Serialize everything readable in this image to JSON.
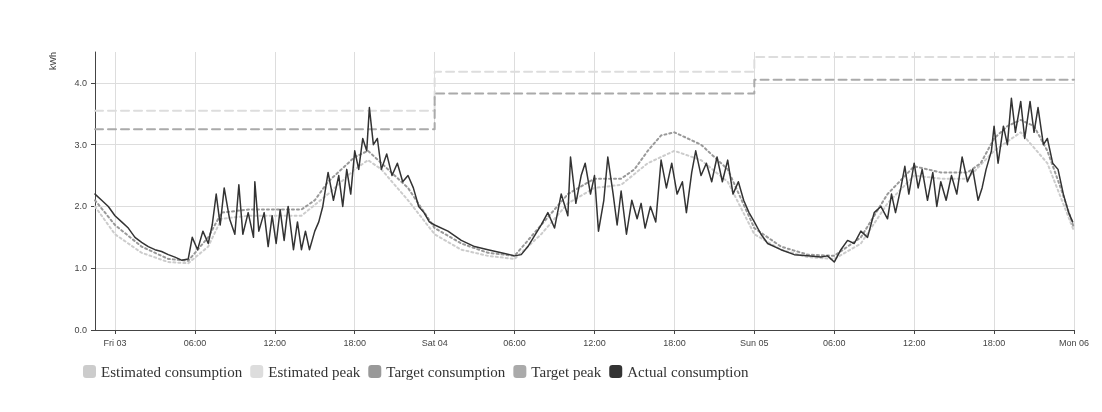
{
  "chart_data": {
    "type": "line",
    "ylabel": "kWh",
    "xlim": [
      "--03-02T22:30",
      "--03-06T00:00"
    ],
    "ylim": [
      0,
      4.5
    ],
    "xticks": [
      {
        "value": "--03-03T00:00",
        "label": "Fri 03"
      },
      {
        "value": "--03-03T06:00",
        "label": "06:00"
      },
      {
        "value": "--03-03T12:00",
        "label": "12:00"
      },
      {
        "value": "--03-03T18:00",
        "label": "18:00"
      },
      {
        "value": "--03-04T00:00",
        "label": "Sat 04"
      },
      {
        "value": "--03-04T06:00",
        "label": "06:00"
      },
      {
        "value": "--03-04T12:00",
        "label": "12:00"
      },
      {
        "value": "--03-04T18:00",
        "label": "18:00"
      },
      {
        "value": "--03-05T00:00",
        "label": "Sun 05"
      },
      {
        "value": "--03-05T06:00",
        "label": "06:00"
      },
      {
        "value": "--03-05T12:00",
        "label": "12:00"
      },
      {
        "value": "--03-05T18:00",
        "label": "18:00"
      },
      {
        "value": "--03-06T00:00",
        "label": "Mon 06"
      }
    ],
    "yticks": [
      {
        "value": 0,
        "label": "0.0"
      },
      {
        "value": 1,
        "label": "1.0"
      },
      {
        "value": 2,
        "label": "2.0"
      },
      {
        "value": 3,
        "label": "3.0"
      },
      {
        "value": 4,
        "label": "4.0"
      }
    ],
    "grid": true,
    "legend": "bottom left",
    "marker": "none",
    "series": [
      {
        "name": "Estimated consumption",
        "line_style": "dotted",
        "color": "#cccccc",
        "x": [
          "--03-02T22:30",
          "--03-03T00:00",
          "--03-03T02:00",
          "--03-03T04:00",
          "--03-03T05:30",
          "--03-03T07:00",
          "--03-03T08:00",
          "--03-03T10:00",
          "--03-03T12:00",
          "--03-03T14:00",
          "--03-03T16:00",
          "--03-03T18:00",
          "--03-03T19:00",
          "--03-03T20:00",
          "--03-03T22:00",
          "--03-04T00:00",
          "--03-04T02:00",
          "--03-04T04:00",
          "--03-04T06:00",
          "--03-04T08:00",
          "--03-04T10:00",
          "--03-04T12:00",
          "--03-04T14:00",
          "--03-04T16:00",
          "--03-04T18:00",
          "--03-04T20:00",
          "--03-04T22:00",
          "--03-05T00:00",
          "--03-05T02:00",
          "--03-05T04:00",
          "--03-05T06:00",
          "--03-05T08:00",
          "--03-05T10:00",
          "--03-05T12:00",
          "--03-05T14:00",
          "--03-05T16:00",
          "--03-05T18:00",
          "--03-05T20:00",
          "--03-05T22:00",
          "--03-06T00:00"
        ],
        "values": [
          2.0,
          1.55,
          1.25,
          1.1,
          1.08,
          1.35,
          1.8,
          1.85,
          1.85,
          1.85,
          2.2,
          2.6,
          2.75,
          2.6,
          2.1,
          1.55,
          1.3,
          1.2,
          1.15,
          1.55,
          2.05,
          2.3,
          2.35,
          2.7,
          2.9,
          2.75,
          2.4,
          1.55,
          1.3,
          1.18,
          1.15,
          1.4,
          2.05,
          2.5,
          2.45,
          2.45,
          2.9,
          3.2,
          2.7,
          1.6
        ]
      },
      {
        "name": "Estimated peak",
        "type": "step",
        "line_style": "dashed",
        "color": "#dddddd",
        "x": [
          "--03-02T22:30",
          "--03-04T00:00",
          "--03-05T00:00",
          "--03-06T00:00"
        ],
        "values": [
          3.55,
          4.18,
          4.42,
          4.42
        ]
      },
      {
        "name": "Target consumption",
        "line_style": "dotted",
        "color": "#999999",
        "x": [
          "--03-02T22:30",
          "--03-03T00:00",
          "--03-03T02:00",
          "--03-03T04:00",
          "--03-03T05:30",
          "--03-03T07:00",
          "--03-03T08:00",
          "--03-03T10:00",
          "--03-03T12:00",
          "--03-03T14:00",
          "--03-03T15:00",
          "--03-03T16:00",
          "--03-03T17:00",
          "--03-03T18:00",
          "--03-03T19:00",
          "--03-03T20:00",
          "--03-03T22:00",
          "--03-04T00:00",
          "--03-04T02:00",
          "--03-04T04:00",
          "--03-04T06:00",
          "--03-04T08:00",
          "--03-04T10:00",
          "--03-04T12:00",
          "--03-04T14:00",
          "--03-04T15:00",
          "--03-04T16:00",
          "--03-04T17:00",
          "--03-04T18:00",
          "--03-04T19:00",
          "--03-04T20:00",
          "--03-04T22:00",
          "--03-05T00:00",
          "--03-05T02:00",
          "--03-05T04:00",
          "--03-05T06:00",
          "--03-05T08:00",
          "--03-05T10:00",
          "--03-05T12:00",
          "--03-05T14:00",
          "--03-05T16:00",
          "--03-05T17:00",
          "--03-05T18:00",
          "--03-05T19:00",
          "--03-05T20:00",
          "--03-05T21:00",
          "--03-05T22:00",
          "--03-05T23:00",
          "--03-06T00:00"
        ],
        "values": [
          2.1,
          1.7,
          1.35,
          1.15,
          1.12,
          1.5,
          1.9,
          1.95,
          1.95,
          1.95,
          2.1,
          2.4,
          2.6,
          2.8,
          2.9,
          2.7,
          2.3,
          1.65,
          1.4,
          1.25,
          1.2,
          1.7,
          2.2,
          2.45,
          2.45,
          2.6,
          2.9,
          3.15,
          3.2,
          3.1,
          3.0,
          2.6,
          1.65,
          1.35,
          1.22,
          1.2,
          1.5,
          2.2,
          2.65,
          2.55,
          2.55,
          2.7,
          3.1,
          3.3,
          3.4,
          3.3,
          2.9,
          2.3,
          1.65
        ]
      },
      {
        "name": "Target peak",
        "type": "step",
        "line_style": "dashed",
        "color": "#aaaaaa",
        "x": [
          "--03-02T22:30",
          "--03-04T00:00",
          "--03-05T00:00",
          "--03-06T00:00"
        ],
        "values": [
          3.25,
          3.83,
          4.05,
          4.05
        ]
      },
      {
        "name": "Actual consumption",
        "line_style": "solid",
        "color": "#333333",
        "x": [
          "--03-02T22:30",
          "--03-02T23:00",
          "--03-02T23:30",
          "--03-03T00:00",
          "--03-03T00:30",
          "--03-03T01:00",
          "--03-03T01:30",
          "--03-03T02:00",
          "--03-03T02:30",
          "--03-03T03:00",
          "--03-03T03:30",
          "--03-03T04:00",
          "--03-03T04:30",
          "--03-03T05:00",
          "--03-03T05:30",
          "--03-03T05:48",
          "--03-03T06:12",
          "--03-03T06:36",
          "--03-03T07:00",
          "--03-03T07:18",
          "--03-03T07:36",
          "--03-03T07:54",
          "--03-03T08:12",
          "--03-03T08:36",
          "--03-03T09:00",
          "--03-03T09:18",
          "--03-03T09:36",
          "--03-03T10:00",
          "--03-03T10:24",
          "--03-03T10:30",
          "--03-03T10:48",
          "--03-03T11:12",
          "--03-03T11:30",
          "--03-03T11:48",
          "--03-03T12:06",
          "--03-03T12:24",
          "--03-03T12:42",
          "--03-03T13:00",
          "--03-03T13:24",
          "--03-03T13:42",
          "--03-03T14:00",
          "--03-03T14:18",
          "--03-03T14:36",
          "--03-03T15:00",
          "--03-03T15:18",
          "--03-03T15:36",
          "--03-03T16:00",
          "--03-03T16:24",
          "--03-03T16:48",
          "--03-03T17:06",
          "--03-03T17:24",
          "--03-03T17:42",
          "--03-03T18:00",
          "--03-03T18:18",
          "--03-03T18:36",
          "--03-03T18:54",
          "--03-03T19:06",
          "--03-03T19:24",
          "--03-03T19:42",
          "--03-03T20:00",
          "--03-03T20:24",
          "--03-03T20:48",
          "--03-03T21:12",
          "--03-03T21:36",
          "--03-03T22:00",
          "--03-03T22:24",
          "--03-03T22:48",
          "--03-03T23:12",
          "--03-03T23:36",
          "--03-04T00:00",
          "--03-04T01:00",
          "--03-04T02:00",
          "--03-04T03:00",
          "--03-04T04:00",
          "--03-04T05:00",
          "--03-04T06:00",
          "--03-04T06:30",
          "--03-04T07:00",
          "--03-04T08:00",
          "--03-04T08:30",
          "--03-04T09:00",
          "--03-04T09:30",
          "--03-04T10:00",
          "--03-04T10:12",
          "--03-04T10:36",
          "--03-04T11:00",
          "--03-04T11:18",
          "--03-04T11:42",
          "--03-04T12:00",
          "--03-04T12:18",
          "--03-04T12:42",
          "--03-04T13:00",
          "--03-04T13:24",
          "--03-04T13:42",
          "--03-04T14:00",
          "--03-04T14:24",
          "--03-04T14:48",
          "--03-04T15:12",
          "--03-04T15:30",
          "--03-04T15:48",
          "--03-04T16:12",
          "--03-04T16:36",
          "--03-04T17:00",
          "--03-04T17:24",
          "--03-04T17:48",
          "--03-04T18:12",
          "--03-04T18:36",
          "--03-04T18:54",
          "--03-04T19:18",
          "--03-04T19:36",
          "--03-04T20:00",
          "--03-04T20:24",
          "--03-04T20:48",
          "--03-04T21:12",
          "--03-04T21:36",
          "--03-04T22:00",
          "--03-04T22:24",
          "--03-04T22:48",
          "--03-04T23:12",
          "--03-04T23:36",
          "--03-05T00:00",
          "--03-05T00:30",
          "--03-05T01:00",
          "--03-05T02:00",
          "--03-05T03:00",
          "--03-05T04:00",
          "--03-05T05:00",
          "--03-05T05:30",
          "--03-05T06:00",
          "--03-05T06:30",
          "--03-05T07:00",
          "--03-05T07:30",
          "--03-05T08:00",
          "--03-05T08:30",
          "--03-05T09:00",
          "--03-05T09:30",
          "--03-05T10:00",
          "--03-05T10:18",
          "--03-05T10:36",
          "--03-05T11:00",
          "--03-05T11:18",
          "--03-05T11:36",
          "--03-05T12:00",
          "--03-05T12:18",
          "--03-05T12:36",
          "--03-05T13:00",
          "--03-05T13:24",
          "--03-05T13:42",
          "--03-05T14:00",
          "--03-05T14:24",
          "--03-05T14:48",
          "--03-05T15:12",
          "--03-05T15:36",
          "--03-05T16:00",
          "--03-05T16:24",
          "--03-05T16:48",
          "--03-05T17:06",
          "--03-05T17:24",
          "--03-05T17:48",
          "--03-05T18:00",
          "--03-05T18:18",
          "--03-05T18:42",
          "--03-05T19:00",
          "--03-05T19:18",
          "--03-05T19:36",
          "--03-05T20:00",
          "--03-05T20:18",
          "--03-05T20:42",
          "--03-05T21:00",
          "--03-05T21:18",
          "--03-05T21:42",
          "--03-05T22:00",
          "--03-05T22:24",
          "--03-05T22:48",
          "--03-05T23:12",
          "--03-05T23:36",
          "--03-05T23:54"
        ],
        "values": [
          2.2,
          2.1,
          2.0,
          1.85,
          1.75,
          1.65,
          1.5,
          1.42,
          1.35,
          1.3,
          1.27,
          1.22,
          1.18,
          1.13,
          1.15,
          1.5,
          1.3,
          1.6,
          1.4,
          1.7,
          2.2,
          1.7,
          2.3,
          1.8,
          1.55,
          2.35,
          1.55,
          1.9,
          1.5,
          2.4,
          1.6,
          1.9,
          1.35,
          1.85,
          1.4,
          1.95,
          1.45,
          2.0,
          1.3,
          1.75,
          1.3,
          1.6,
          1.3,
          1.6,
          1.75,
          2.0,
          2.55,
          2.1,
          2.5,
          2.0,
          2.6,
          2.2,
          2.9,
          2.6,
          3.1,
          2.9,
          3.6,
          3.0,
          3.1,
          2.6,
          2.85,
          2.5,
          2.7,
          2.4,
          2.5,
          2.3,
          2.0,
          1.9,
          1.75,
          1.7,
          1.6,
          1.45,
          1.35,
          1.3,
          1.25,
          1.2,
          1.22,
          1.35,
          1.7,
          1.9,
          1.65,
          2.2,
          1.85,
          2.8,
          2.05,
          2.5,
          2.7,
          2.2,
          2.5,
          1.6,
          2.1,
          2.8,
          2.2,
          1.7,
          2.25,
          1.55,
          2.1,
          1.8,
          2.05,
          1.65,
          2.0,
          1.75,
          2.75,
          2.3,
          2.7,
          2.2,
          2.4,
          1.9,
          2.55,
          2.9,
          2.5,
          2.7,
          2.4,
          2.8,
          2.4,
          2.75,
          2.2,
          2.4,
          2.1,
          1.9,
          1.75,
          1.55,
          1.4,
          1.3,
          1.22,
          1.2,
          1.18,
          1.2,
          1.1,
          1.3,
          1.45,
          1.4,
          1.6,
          1.5,
          1.9,
          2.0,
          1.8,
          2.2,
          1.9,
          2.3,
          2.65,
          2.2,
          2.7,
          2.3,
          2.6,
          2.1,
          2.55,
          2.0,
          2.4,
          2.1,
          2.5,
          2.2,
          2.8,
          2.4,
          2.6,
          2.1,
          2.3,
          2.6,
          2.9,
          3.3,
          2.7,
          3.3,
          3.0,
          3.75,
          3.2,
          3.7,
          3.1,
          3.7,
          3.2,
          3.6,
          3.0,
          3.1,
          2.7,
          2.6,
          2.2,
          1.9,
          1.75
        ]
      }
    ]
  }
}
